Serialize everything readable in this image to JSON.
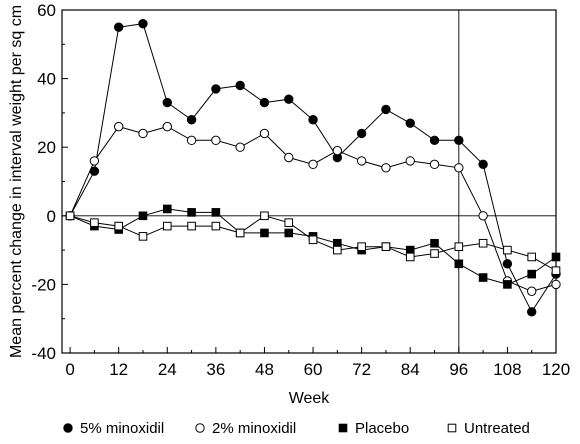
{
  "chart_data": {
    "type": "line",
    "title": "",
    "xlabel": "Week",
    "ylabel": "Mean percent change in interval weight per sq cm",
    "xlim": [
      -2,
      120
    ],
    "ylim": [
      -40,
      60
    ],
    "x_ticks": [
      0,
      12,
      24,
      36,
      48,
      60,
      72,
      84,
      96,
      108,
      120
    ],
    "y_ticks": [
      -40,
      -20,
      0,
      20,
      40,
      60
    ],
    "x_tick_labels": [
      "0",
      "12",
      "24",
      "36",
      "48",
      "60",
      "72",
      "84",
      "96",
      "108",
      "120"
    ],
    "y_tick_labels": [
      "-40",
      "-20",
      "0",
      "20",
      "40",
      "60"
    ],
    "reference_lines": {
      "y": 0,
      "x": 96
    },
    "grid": false,
    "legend_position": "bottom",
    "series": [
      {
        "name": "5% minoxidil",
        "marker": "filled-circle",
        "color": "#000000",
        "x": [
          0,
          6,
          12,
          18,
          24,
          30,
          36,
          42,
          48,
          54,
          60,
          66,
          72,
          78,
          84,
          90,
          96,
          102,
          108,
          114,
          120
        ],
        "values": [
          0,
          13,
          55,
          56,
          33,
          28,
          37,
          38,
          33,
          34,
          28,
          17,
          24,
          31,
          27,
          22,
          22,
          15,
          -14,
          -28,
          -17
        ]
      },
      {
        "name": "2% minoxidil",
        "marker": "open-circle",
        "color": "#000000",
        "x": [
          0,
          6,
          12,
          18,
          24,
          30,
          36,
          42,
          48,
          54,
          60,
          66,
          72,
          78,
          84,
          90,
          96,
          102,
          108,
          114,
          120
        ],
        "values": [
          0,
          16,
          26,
          24,
          26,
          22,
          22,
          20,
          24,
          17,
          15,
          19,
          16,
          14,
          16,
          15,
          14,
          0,
          -19,
          -22,
          -20
        ]
      },
      {
        "name": "Placebo",
        "marker": "filled-square",
        "color": "#000000",
        "x": [
          0,
          6,
          12,
          18,
          24,
          30,
          36,
          42,
          48,
          54,
          60,
          66,
          72,
          78,
          84,
          90,
          96,
          102,
          108,
          114,
          120
        ],
        "values": [
          0,
          -3,
          -4,
          0,
          2,
          1,
          1,
          -5,
          -5,
          -5,
          -6,
          -8,
          -10,
          -9,
          -10,
          -8,
          -14,
          -18,
          -20,
          -17,
          -12
        ]
      },
      {
        "name": "Untreated",
        "marker": "open-square",
        "color": "#000000",
        "x": [
          0,
          6,
          12,
          18,
          24,
          30,
          36,
          42,
          48,
          54,
          60,
          66,
          72,
          78,
          84,
          90,
          96,
          102,
          108,
          114,
          120
        ],
        "values": [
          0,
          -2,
          -3,
          -6,
          -3,
          -3,
          -3,
          -5,
          0,
          -2,
          -7,
          -10,
          -9,
          -9,
          -12,
          -11,
          -9,
          -8,
          -10,
          -12,
          -16
        ]
      }
    ]
  }
}
